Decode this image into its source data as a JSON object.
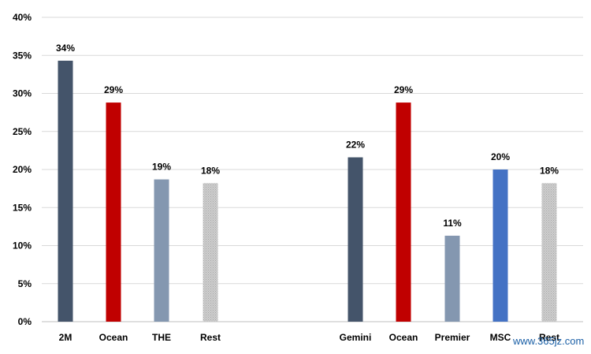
{
  "chart_data": {
    "type": "bar",
    "title": "",
    "xlabel": "",
    "ylabel": "",
    "ylim": [
      0,
      40
    ],
    "y_ticks": [
      "0%",
      "5%",
      "10%",
      "15%",
      "20%",
      "25%",
      "30%",
      "35%",
      "40%"
    ],
    "y_tick_values": [
      0,
      5,
      10,
      15,
      20,
      25,
      30,
      35,
      40
    ],
    "grid": true,
    "groups": [
      {
        "categories": [
          "2M",
          "Ocean",
          "THE",
          "Rest"
        ],
        "values": [
          34.3,
          28.8,
          18.7,
          18.2
        ],
        "labels": [
          "34%",
          "29%",
          "19%",
          "18%"
        ],
        "colors": [
          "#44546a",
          "#c00000",
          "#8497b0",
          "#bfbfbf"
        ]
      },
      {
        "categories": [
          "Gemini",
          "Ocean",
          "Premier",
          "MSC",
          "Rest"
        ],
        "values": [
          21.6,
          28.8,
          11.3,
          20.0,
          18.2
        ],
        "labels": [
          "22%",
          "29%",
          "11%",
          "20%",
          "18%"
        ],
        "colors": [
          "#44546a",
          "#c00000",
          "#8497b0",
          "#4472c4",
          "#bfbfbf"
        ]
      }
    ],
    "colors": {
      "grid": "#d9d9d9",
      "axis": "#bfbfbf"
    }
  },
  "watermark": "www.365jz.com"
}
